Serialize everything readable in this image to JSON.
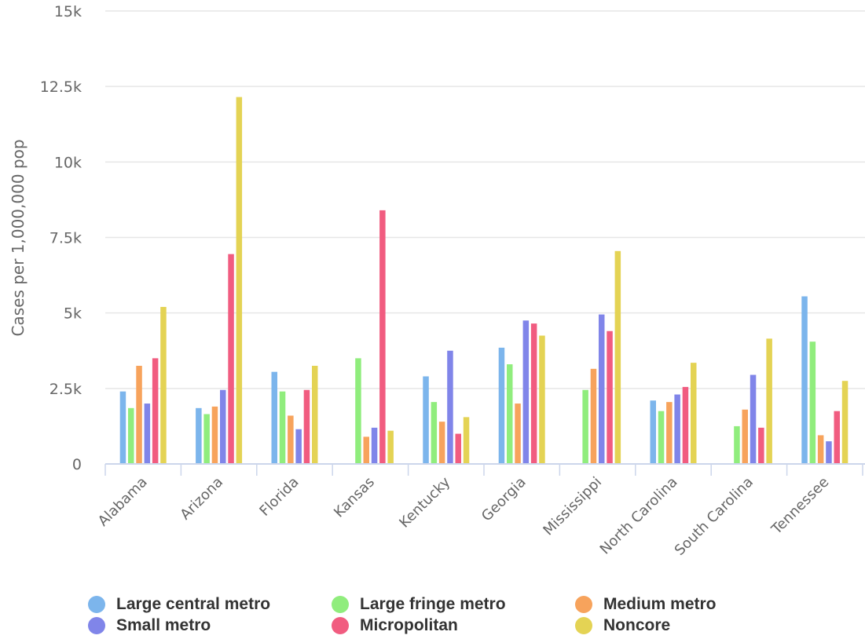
{
  "chart_data": {
    "type": "bar",
    "title": "",
    "xlabel": "",
    "ylabel": "Cases per 1,000,000 pop",
    "ylim": [
      0,
      15000
    ],
    "yticks": [
      0,
      2500,
      5000,
      7500,
      10000,
      12500,
      15000
    ],
    "ytick_labels": [
      "0",
      "2.5k",
      "5k",
      "7.5k",
      "10k",
      "12.5k",
      "15k"
    ],
    "grid": true,
    "legend_position": "bottom",
    "categories": [
      "Alabama",
      "Arizona",
      "Florida",
      "Kansas",
      "Kentucky",
      "Georgia",
      "Mississippi",
      "North Carolina",
      "South Carolina",
      "Tennessee"
    ],
    "series": [
      {
        "name": "Large central metro",
        "color": "#7cb5ec",
        "values": [
          2400,
          1850,
          3050,
          null,
          2900,
          3850,
          null,
          2100,
          null,
          5550
        ]
      },
      {
        "name": "Large fringe metro",
        "color": "#90ed7d",
        "values": [
          1850,
          1650,
          2400,
          3500,
          2050,
          3300,
          2450,
          1750,
          1250,
          4050
        ]
      },
      {
        "name": "Medium metro",
        "color": "#f7a35c",
        "values": [
          3250,
          1900,
          1600,
          900,
          1400,
          2000,
          3150,
          2050,
          1800,
          950
        ]
      },
      {
        "name": "Small metro",
        "color": "#8085e9",
        "values": [
          2000,
          2450,
          1150,
          1200,
          3750,
          4750,
          4950,
          2300,
          2950,
          750
        ]
      },
      {
        "name": "Micropolitan",
        "color": "#f15c80",
        "values": [
          3500,
          6950,
          2450,
          8400,
          1000,
          4650,
          4400,
          2550,
          1200,
          1750
        ]
      },
      {
        "name": "Noncore",
        "color": "#e4d354",
        "values": [
          5200,
          12150,
          3250,
          1100,
          1550,
          4250,
          7050,
          3350,
          4150,
          2750
        ]
      }
    ]
  }
}
